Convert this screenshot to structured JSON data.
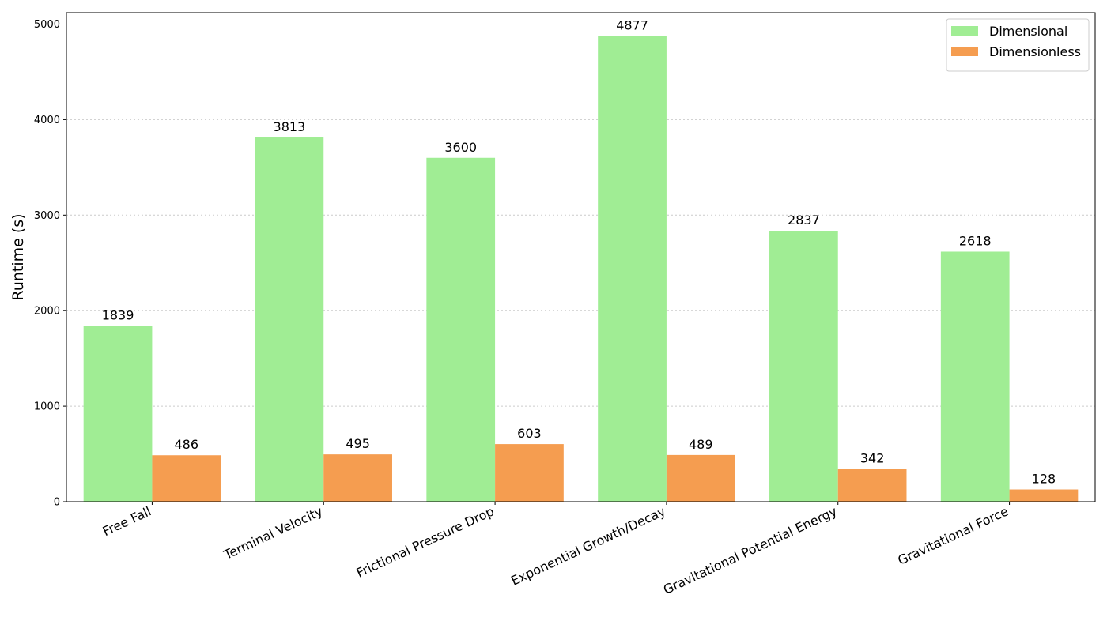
{
  "chart_data": {
    "type": "bar",
    "title": "",
    "xlabel": "",
    "ylabel": "Runtime (s)",
    "ylim": [
      0,
      5120
    ],
    "yticks": [
      0,
      1000,
      2000,
      3000,
      4000,
      5000
    ],
    "grid": "horizontal dotted",
    "legend_position": "top-right",
    "categories": [
      "Free Fall",
      "Terminal Velocity",
      "Frictional Pressure Drop",
      "Exponential Growth/Decay",
      "Gravitational Potential Energy",
      "Gravitational Force"
    ],
    "series": [
      {
        "name": "Dimensional",
        "color": "#a0ed94",
        "values": [
          1839,
          3813,
          3600,
          4877,
          2837,
          2618
        ]
      },
      {
        "name": "Dimensionless",
        "color": "#f59d50",
        "values": [
          486,
          495,
          603,
          489,
          342,
          128
        ]
      }
    ]
  }
}
